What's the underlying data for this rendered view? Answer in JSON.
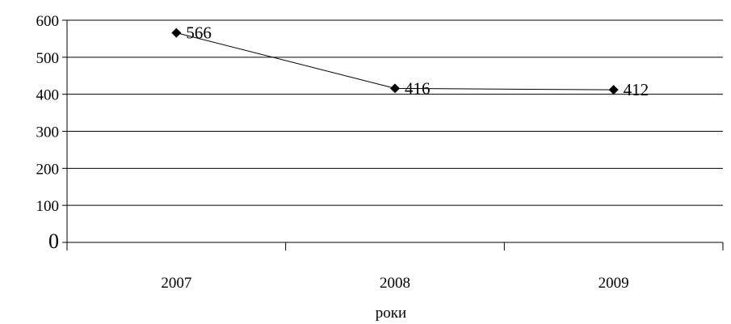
{
  "chart_data": {
    "type": "line",
    "categories": [
      "2007",
      "2008",
      "2009"
    ],
    "series": [
      {
        "values": [
          566,
          416,
          412
        ]
      }
    ],
    "data_labels": [
      "566",
      "416",
      "412"
    ],
    "title": "",
    "xlabel": "роки",
    "ylabel": "",
    "ylim": [
      0,
      600
    ],
    "yticks": [
      0,
      100,
      200,
      300,
      400,
      500,
      600
    ],
    "ytick_labels": [
      "0",
      "100",
      "200",
      "300",
      "400",
      "500",
      "600"
    ],
    "grid": true,
    "marker": "diamond",
    "line_color": "#000000",
    "marker_color": "#000000",
    "grid_color": "#000000"
  }
}
